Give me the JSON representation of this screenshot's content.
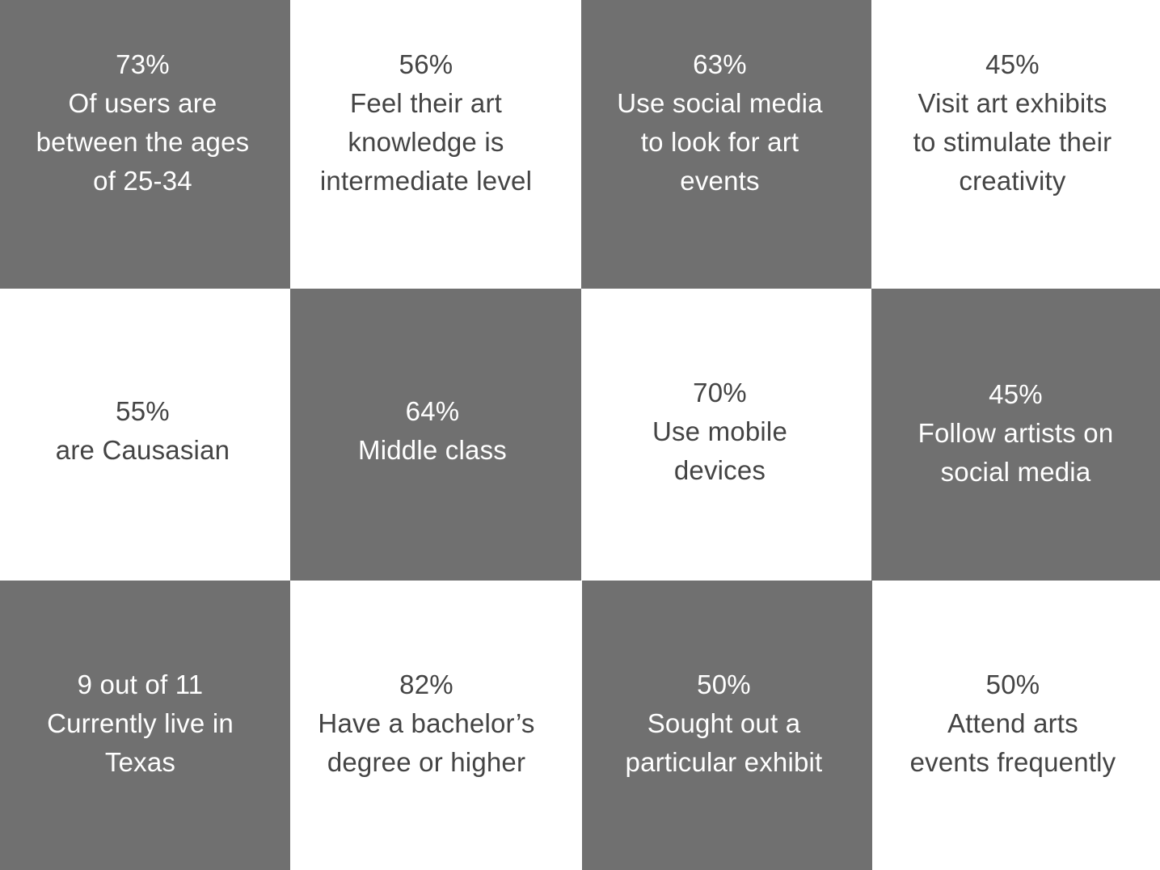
{
  "stats": [
    {
      "lines": [
        "73%",
        "Of users are",
        "between the ages",
        "of 25-34"
      ]
    },
    {
      "lines": [
        "56%",
        "Feel their art",
        "knowledge is",
        "intermediate level"
      ]
    },
    {
      "lines": [
        "63%",
        "Use social media",
        "to look for art",
        "events"
      ]
    },
    {
      "lines": [
        "45%",
        "Visit art exhibits",
        "to stimulate their",
        "creativity"
      ]
    },
    {
      "lines": [
        "55%",
        "are Causasian"
      ]
    },
    {
      "lines": [
        "64%",
        "Middle class"
      ]
    },
    {
      "lines": [
        "70%",
        "Use mobile",
        "devices"
      ]
    },
    {
      "lines": [
        "45%",
        "Follow artists on",
        "social media"
      ]
    },
    {
      "lines": [
        "9 out of 11",
        "Currently live in",
        "Texas"
      ]
    },
    {
      "lines": [
        "82%",
        "Have a bachelor’s",
        "degree or higher"
      ]
    },
    {
      "lines": [
        "50%",
        "Sought out a",
        "particular exhibit"
      ]
    },
    {
      "lines": [
        "50%",
        "Attend arts",
        "events frequently"
      ]
    }
  ]
}
